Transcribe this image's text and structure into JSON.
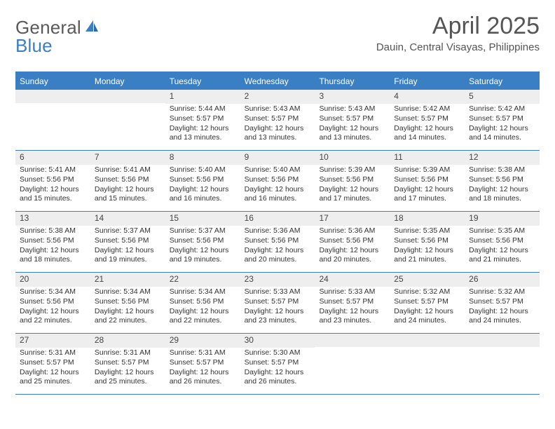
{
  "brand": {
    "word1": "General",
    "word2": "Blue"
  },
  "header": {
    "title": "April 2025",
    "location": "Dauin, Central Visayas, Philippines"
  },
  "colors": {
    "accent": "#3a7fc4",
    "header_text": "#ffffff",
    "cell_num_bg": "#eeeeee",
    "body_text": "#333333",
    "title_text": "#555555"
  },
  "day_labels": [
    "Sunday",
    "Monday",
    "Tuesday",
    "Wednesday",
    "Thursday",
    "Friday",
    "Saturday"
  ],
  "weeks": [
    [
      {
        "n": "",
        "sunrise": "",
        "sunset": "",
        "daylight": ""
      },
      {
        "n": "",
        "sunrise": "",
        "sunset": "",
        "daylight": ""
      },
      {
        "n": "1",
        "sunrise": "Sunrise: 5:44 AM",
        "sunset": "Sunset: 5:57 PM",
        "daylight": "Daylight: 12 hours and 13 minutes."
      },
      {
        "n": "2",
        "sunrise": "Sunrise: 5:43 AM",
        "sunset": "Sunset: 5:57 PM",
        "daylight": "Daylight: 12 hours and 13 minutes."
      },
      {
        "n": "3",
        "sunrise": "Sunrise: 5:43 AM",
        "sunset": "Sunset: 5:57 PM",
        "daylight": "Daylight: 12 hours and 13 minutes."
      },
      {
        "n": "4",
        "sunrise": "Sunrise: 5:42 AM",
        "sunset": "Sunset: 5:57 PM",
        "daylight": "Daylight: 12 hours and 14 minutes."
      },
      {
        "n": "5",
        "sunrise": "Sunrise: 5:42 AM",
        "sunset": "Sunset: 5:57 PM",
        "daylight": "Daylight: 12 hours and 14 minutes."
      }
    ],
    [
      {
        "n": "6",
        "sunrise": "Sunrise: 5:41 AM",
        "sunset": "Sunset: 5:56 PM",
        "daylight": "Daylight: 12 hours and 15 minutes."
      },
      {
        "n": "7",
        "sunrise": "Sunrise: 5:41 AM",
        "sunset": "Sunset: 5:56 PM",
        "daylight": "Daylight: 12 hours and 15 minutes."
      },
      {
        "n": "8",
        "sunrise": "Sunrise: 5:40 AM",
        "sunset": "Sunset: 5:56 PM",
        "daylight": "Daylight: 12 hours and 16 minutes."
      },
      {
        "n": "9",
        "sunrise": "Sunrise: 5:40 AM",
        "sunset": "Sunset: 5:56 PM",
        "daylight": "Daylight: 12 hours and 16 minutes."
      },
      {
        "n": "10",
        "sunrise": "Sunrise: 5:39 AM",
        "sunset": "Sunset: 5:56 PM",
        "daylight": "Daylight: 12 hours and 17 minutes."
      },
      {
        "n": "11",
        "sunrise": "Sunrise: 5:39 AM",
        "sunset": "Sunset: 5:56 PM",
        "daylight": "Daylight: 12 hours and 17 minutes."
      },
      {
        "n": "12",
        "sunrise": "Sunrise: 5:38 AM",
        "sunset": "Sunset: 5:56 PM",
        "daylight": "Daylight: 12 hours and 18 minutes."
      }
    ],
    [
      {
        "n": "13",
        "sunrise": "Sunrise: 5:38 AM",
        "sunset": "Sunset: 5:56 PM",
        "daylight": "Daylight: 12 hours and 18 minutes."
      },
      {
        "n": "14",
        "sunrise": "Sunrise: 5:37 AM",
        "sunset": "Sunset: 5:56 PM",
        "daylight": "Daylight: 12 hours and 19 minutes."
      },
      {
        "n": "15",
        "sunrise": "Sunrise: 5:37 AM",
        "sunset": "Sunset: 5:56 PM",
        "daylight": "Daylight: 12 hours and 19 minutes."
      },
      {
        "n": "16",
        "sunrise": "Sunrise: 5:36 AM",
        "sunset": "Sunset: 5:56 PM",
        "daylight": "Daylight: 12 hours and 20 minutes."
      },
      {
        "n": "17",
        "sunrise": "Sunrise: 5:36 AM",
        "sunset": "Sunset: 5:56 PM",
        "daylight": "Daylight: 12 hours and 20 minutes."
      },
      {
        "n": "18",
        "sunrise": "Sunrise: 5:35 AM",
        "sunset": "Sunset: 5:56 PM",
        "daylight": "Daylight: 12 hours and 21 minutes."
      },
      {
        "n": "19",
        "sunrise": "Sunrise: 5:35 AM",
        "sunset": "Sunset: 5:56 PM",
        "daylight": "Daylight: 12 hours and 21 minutes."
      }
    ],
    [
      {
        "n": "20",
        "sunrise": "Sunrise: 5:34 AM",
        "sunset": "Sunset: 5:56 PM",
        "daylight": "Daylight: 12 hours and 22 minutes."
      },
      {
        "n": "21",
        "sunrise": "Sunrise: 5:34 AM",
        "sunset": "Sunset: 5:56 PM",
        "daylight": "Daylight: 12 hours and 22 minutes."
      },
      {
        "n": "22",
        "sunrise": "Sunrise: 5:34 AM",
        "sunset": "Sunset: 5:56 PM",
        "daylight": "Daylight: 12 hours and 22 minutes."
      },
      {
        "n": "23",
        "sunrise": "Sunrise: 5:33 AM",
        "sunset": "Sunset: 5:57 PM",
        "daylight": "Daylight: 12 hours and 23 minutes."
      },
      {
        "n": "24",
        "sunrise": "Sunrise: 5:33 AM",
        "sunset": "Sunset: 5:57 PM",
        "daylight": "Daylight: 12 hours and 23 minutes."
      },
      {
        "n": "25",
        "sunrise": "Sunrise: 5:32 AM",
        "sunset": "Sunset: 5:57 PM",
        "daylight": "Daylight: 12 hours and 24 minutes."
      },
      {
        "n": "26",
        "sunrise": "Sunrise: 5:32 AM",
        "sunset": "Sunset: 5:57 PM",
        "daylight": "Daylight: 12 hours and 24 minutes."
      }
    ],
    [
      {
        "n": "27",
        "sunrise": "Sunrise: 5:31 AM",
        "sunset": "Sunset: 5:57 PM",
        "daylight": "Daylight: 12 hours and 25 minutes."
      },
      {
        "n": "28",
        "sunrise": "Sunrise: 5:31 AM",
        "sunset": "Sunset: 5:57 PM",
        "daylight": "Daylight: 12 hours and 25 minutes."
      },
      {
        "n": "29",
        "sunrise": "Sunrise: 5:31 AM",
        "sunset": "Sunset: 5:57 PM",
        "daylight": "Daylight: 12 hours and 26 minutes."
      },
      {
        "n": "30",
        "sunrise": "Sunrise: 5:30 AM",
        "sunset": "Sunset: 5:57 PM",
        "daylight": "Daylight: 12 hours and 26 minutes."
      },
      {
        "n": "",
        "sunrise": "",
        "sunset": "",
        "daylight": ""
      },
      {
        "n": "",
        "sunrise": "",
        "sunset": "",
        "daylight": ""
      },
      {
        "n": "",
        "sunrise": "",
        "sunset": "",
        "daylight": ""
      }
    ]
  ]
}
